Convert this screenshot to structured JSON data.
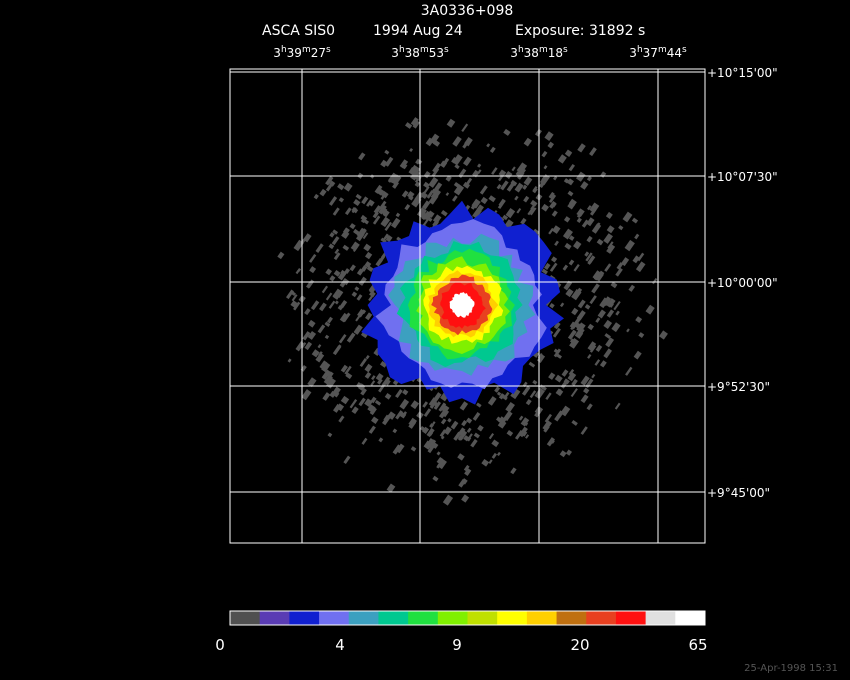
{
  "header": {
    "title": "3A0336+098",
    "instrument": "ASCA SIS0",
    "date": "1994 Aug 24",
    "exposure": "Exposure: 31892 s"
  },
  "ra_labels": [
    [
      "3",
      "h",
      "39",
      "m",
      "27",
      "s"
    ],
    [
      "3",
      "h",
      "38",
      "m",
      "53",
      "s"
    ],
    [
      "3",
      "h",
      "38",
      "m",
      "18",
      "s"
    ],
    [
      "3",
      "h",
      "37",
      "m",
      "44",
      "s"
    ]
  ],
  "dec_labels": [
    "+10°15'00\"",
    "+10°07'30\"",
    "+10°00'00\"",
    "+9°52'30\"",
    "+9°45'00\""
  ],
  "colorbar_labels": [
    "0",
    "4",
    "9",
    "20",
    "65"
  ],
  "timestamp": "25-Apr-1998 15:31"
}
